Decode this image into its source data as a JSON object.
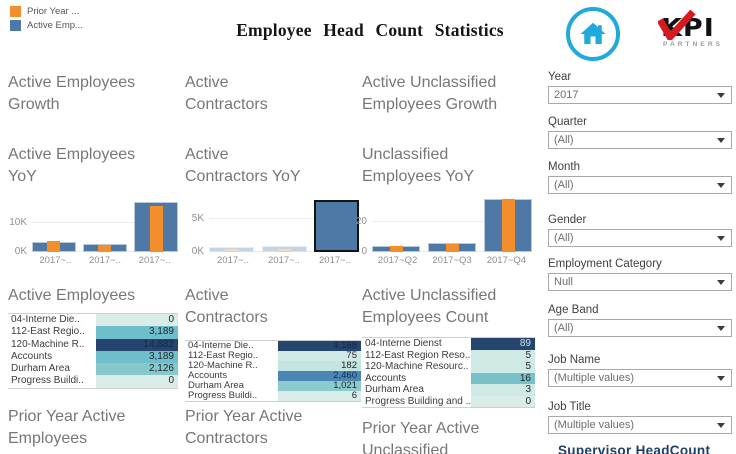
{
  "header": {
    "title": "Employee Head Count Statistics",
    "legend": [
      {
        "label": "Prior Year ...",
        "color": "#f28e2b"
      },
      {
        "label": "Active Emp...",
        "color": "#4e79a7"
      }
    ],
    "kpi_logo": {
      "text": "KPI",
      "subtext": "PARTNERS"
    }
  },
  "columns": [
    {
      "growth_heading": "Active Employees Growth",
      "yoy_heading": "Active Employees YoY",
      "count_heading": "Active Employees",
      "prior_heading": "Prior Year Active Employees",
      "table_rows": [
        {
          "label": "04-Interne Die..",
          "value": "0",
          "bg": "#d9ece7"
        },
        {
          "label": "112-East Regio..",
          "value": "3,189",
          "bg": "#6fbecb"
        },
        {
          "label": "120-Machine R..",
          "value": "14,882",
          "bg": "#26456e",
          "fg": "#102a46"
        },
        {
          "label": "Accounts",
          "value": "3,189",
          "bg": "#6fbecb"
        },
        {
          "label": "Durham Area",
          "value": "2,126",
          "bg": "#87c8cc"
        },
        {
          "label": "Progress Buildi..",
          "value": "0",
          "bg": "#d9ece7"
        }
      ]
    },
    {
      "growth_heading": "Active Contractors",
      "yoy_heading": "Active Contractors YoY",
      "count_heading": "Active Contractors",
      "prior_heading": "Prior Year Active Contractors",
      "table_rows": [
        {
          "label": "04-Interne Die..",
          "value": "4,168",
          "bg": "#26456e",
          "fg": "#102a46"
        },
        {
          "label": "112-East Regio..",
          "value": "75",
          "bg": "#cfe9e5"
        },
        {
          "label": "120-Machine R..",
          "value": "182",
          "bg": "#c4e4e1"
        },
        {
          "label": "Accounts",
          "value": "2,460",
          "bg": "#4a87b4",
          "fg": "#112f4e"
        },
        {
          "label": "Durham Area",
          "value": "1,021",
          "bg": "#8ccbcd"
        },
        {
          "label": "Progress Buildi..",
          "value": "6",
          "bg": "#d9ece7"
        }
      ]
    },
    {
      "growth_heading": "Active Unclassified Employees Growth",
      "yoy_heading": "Unclassified Employees YoY",
      "count_heading": "Active Unclassified Employees Count",
      "prior_heading": "Prior Year Active Unclassified",
      "table_rows": [
        {
          "label": "04-Interne Dienst",
          "value": "89",
          "bg": "#26456e",
          "fg": "#c9e4e0"
        },
        {
          "label": "112-East Region Reso..",
          "value": "5",
          "bg": "#cfe9e5"
        },
        {
          "label": "120-Machine Resourc..",
          "value": "5",
          "bg": "#cfe9e5"
        },
        {
          "label": "Accounts",
          "value": "16",
          "bg": "#79c1c9"
        },
        {
          "label": "Durham Area",
          "value": "3",
          "bg": "#cfe9e5"
        },
        {
          "label": "Progress Building and ..",
          "value": "0",
          "bg": "#d9ece7"
        }
      ]
    }
  ],
  "chart_data": [
    {
      "type": "bar",
      "title": "Active Employees YoY",
      "categories": [
        "2017~..",
        "2017~..",
        "2017~.."
      ],
      "series": [
        {
          "name": "active-employees",
          "color": "#4e79a7",
          "values": [
            3300,
            2700,
            17300
          ]
        },
        {
          "name": "prior-year",
          "color": "#f28e2b",
          "values": [
            3700,
            2300,
            15800
          ]
        }
      ],
      "ylim": [
        0,
        18500
      ],
      "yticks": [
        {
          "label": "10K",
          "value": 10000
        },
        {
          "label": "0K",
          "value": 0
        }
      ],
      "legend_position": "none",
      "grid": true
    },
    {
      "type": "bar",
      "title": "Active Contractors YoY",
      "categories": [
        "2017~..",
        "2017~..",
        "2017~.."
      ],
      "series": [
        {
          "name": "active-contractors",
          "color": "#4e79a7",
          "values": [
            800,
            850,
            8000
          ]
        },
        {
          "name": "prior-year",
          "color": "#f28e2b",
          "values": [
            450,
            500,
            0
          ]
        }
      ],
      "ylim": [
        0,
        8300
      ],
      "yticks": [
        {
          "label": "5K",
          "value": 5000
        },
        {
          "label": "0K",
          "value": 0
        }
      ],
      "faded": [
        true,
        true,
        false
      ],
      "selected": [
        false,
        false,
        true
      ],
      "legend_position": "none",
      "grid": true
    },
    {
      "type": "bar",
      "title": "Unclassified Employees YoY",
      "categories": [
        "2017~Q2",
        "2017~Q3",
        "2017~Q4"
      ],
      "series": [
        {
          "name": "unclassified-employees",
          "color": "#4e79a7",
          "values": [
            4,
            6,
            35
          ]
        },
        {
          "name": "prior-year",
          "color": "#f28e2b",
          "values": [
            4,
            5.5,
            35
          ]
        }
      ],
      "ylim": [
        0,
        36
      ],
      "yticks": [
        {
          "label": "20",
          "value": 20
        },
        {
          "label": "0",
          "value": 0
        }
      ],
      "legend_position": "none",
      "grid": true
    }
  ],
  "filters": [
    {
      "label": "Year",
      "value": "2017"
    },
    {
      "label": "Quarter",
      "value": "(All)"
    },
    {
      "label": "Month",
      "value": "(All)"
    },
    {
      "label": "Gender",
      "value": "(All)"
    },
    {
      "label": "Employment Category",
      "value": "Null"
    },
    {
      "label": "Age Band",
      "value": "(All)"
    },
    {
      "label": "Job Name",
      "value": "(Multiple values)"
    },
    {
      "label": "Job Title",
      "value": "(Multiple values)"
    }
  ],
  "sidebar_footer": {
    "heading": "Supervisor HeadCount"
  },
  "colors": {
    "accent_blue": "#4e79a7",
    "accent_orange": "#f28e2b",
    "home_teal": "#1fa9dc",
    "kpi_red": "#d6181f",
    "heading_gray": "#777777",
    "cell_dark_navy": "#26456e"
  }
}
